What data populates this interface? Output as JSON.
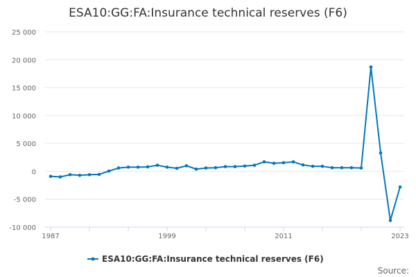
{
  "chart_data": {
    "type": "line",
    "title": "ESA10:GG:FA:Insurance technical reserves (F6)",
    "ylim": [
      -10000,
      25000
    ],
    "yticks": [
      -10000,
      -5000,
      0,
      5000,
      10000,
      15000,
      20000,
      25000
    ],
    "ytick_labels": [
      "-10 000",
      "-5 000",
      "0",
      "5 000",
      "10 000",
      "15 000",
      "20 000",
      "25 000"
    ],
    "xlim": [
      1987,
      2023
    ],
    "xticks": [
      1987,
      1999,
      2011,
      2023
    ],
    "xtick_labels": [
      "1987",
      "1999",
      "2011",
      "2023"
    ],
    "grid": true,
    "legend_position": "bottom",
    "color": "#0077bb",
    "series": [
      {
        "name": "ESA10:GG:FA:Insurance technical reserves (F6)",
        "x": [
          1987,
          1988,
          1989,
          1990,
          1991,
          1992,
          1993,
          1994,
          1995,
          1996,
          1997,
          1998,
          1999,
          2000,
          2001,
          2002,
          2003,
          2004,
          2005,
          2006,
          2007,
          2008,
          2009,
          2010,
          2011,
          2012,
          2013,
          2014,
          2015,
          2016,
          2017,
          2018,
          2019,
          2020,
          2021,
          2022,
          2023
        ],
        "values": [
          -900,
          -1000,
          -600,
          -700,
          -600,
          -550,
          50,
          600,
          750,
          750,
          800,
          1100,
          750,
          550,
          1000,
          400,
          600,
          650,
          850,
          850,
          950,
          1100,
          1700,
          1450,
          1550,
          1700,
          1150,
          900,
          900,
          650,
          650,
          650,
          600,
          18700,
          3300,
          -8800,
          -2800
        ]
      }
    ]
  },
  "legend": {
    "label": "ESA10:GG:FA:Insurance technical reserves (F6)"
  },
  "credits": {
    "label": "Source:"
  }
}
